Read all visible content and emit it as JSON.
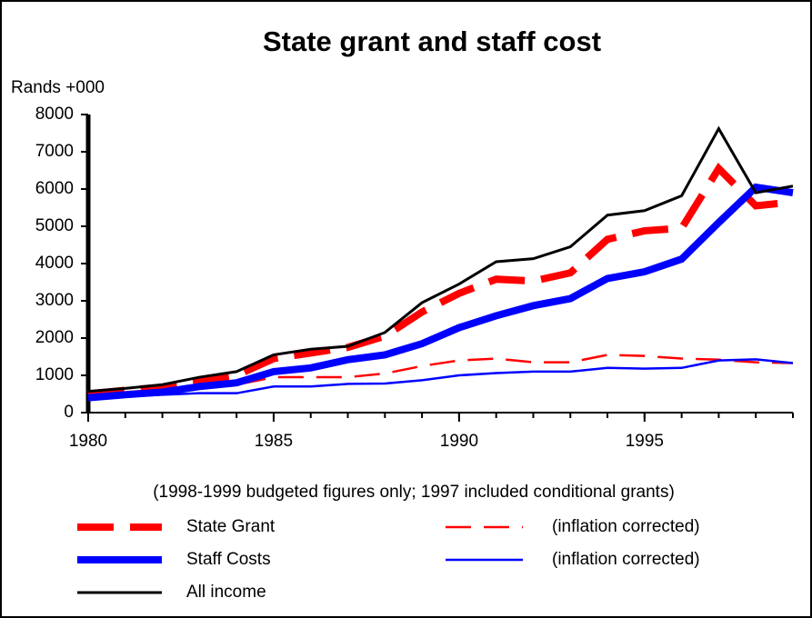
{
  "chart_data": {
    "type": "line",
    "title": "State grant and staff cost",
    "y_label": "Rands +000",
    "note": "(1998-1999 budgeted figures only; 1997 included conditional grants)",
    "x": [
      1980,
      1981,
      1982,
      1983,
      1984,
      1985,
      1986,
      1987,
      1988,
      1989,
      1990,
      1991,
      1992,
      1993,
      1994,
      1995,
      1996,
      1997,
      1998,
      1999
    ],
    "xlim": [
      1980,
      1999
    ],
    "xticks": [
      1980,
      1985,
      1990,
      1995
    ],
    "ylim": [
      0,
      8000
    ],
    "yticks": [
      0,
      1000,
      2000,
      3000,
      4000,
      5000,
      6000,
      7000,
      8000
    ],
    "series": [
      {
        "name": "State Grant",
        "color": "#ff0000",
        "width": 8,
        "dashed": true,
        "values": [
          500,
          600,
          680,
          850,
          1000,
          1450,
          1600,
          1750,
          2050,
          2700,
          3200,
          3580,
          3530,
          3750,
          4650,
          4880,
          4950,
          6550,
          5550,
          5650
        ]
      },
      {
        "name": "(inflation corrected)",
        "color": "#ff0000",
        "width": 2.5,
        "dashed": true,
        "values": [
          500,
          550,
          620,
          700,
          750,
          950,
          950,
          950,
          1050,
          1250,
          1400,
          1450,
          1350,
          1350,
          1550,
          1520,
          1450,
          1420,
          1350,
          1330
        ]
      },
      {
        "name": "Staff Costs",
        "color": "#0000ff",
        "width": 8,
        "dashed": false,
        "values": [
          400,
          480,
          550,
          700,
          800,
          1100,
          1200,
          1420,
          1550,
          1850,
          2280,
          2600,
          2870,
          3060,
          3600,
          3780,
          4120,
          5100,
          6050,
          5900
        ]
      },
      {
        "name": "(inflation corrected)",
        "color": "#0000ff",
        "width": 2.5,
        "dashed": false,
        "values": [
          380,
          430,
          480,
          520,
          520,
          700,
          700,
          770,
          780,
          870,
          1000,
          1060,
          1100,
          1100,
          1200,
          1180,
          1200,
          1400,
          1430,
          1330
        ]
      },
      {
        "name": "All income",
        "color": "#000000",
        "width": 3,
        "dashed": false,
        "values": [
          570,
          650,
          750,
          950,
          1100,
          1550,
          1700,
          1780,
          2150,
          2950,
          3450,
          4050,
          4130,
          4450,
          5300,
          5420,
          5820,
          7620,
          5900,
          6080
        ]
      }
    ]
  }
}
